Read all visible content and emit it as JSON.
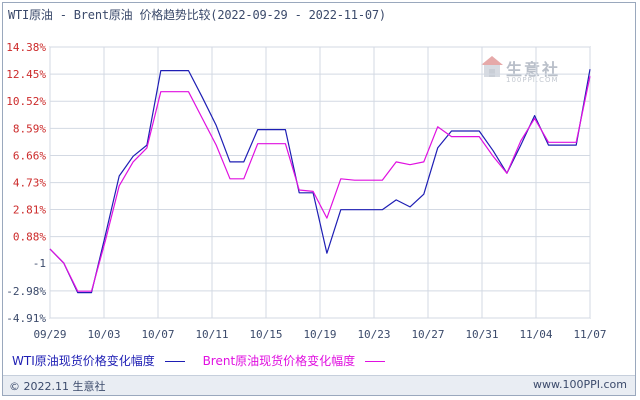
{
  "title": "WTI原油 - Brent原油 价格趋势比较(2022-09-29 - 2022-11-07)",
  "watermark": {
    "name": "生意社",
    "url": "100PPI.COM"
  },
  "footer": {
    "copyright": "© 2022.11 生意社",
    "site": "www.100PPI.com"
  },
  "chart_data": {
    "type": "line",
    "ylabels": [
      "14.38%",
      "12.45%",
      "10.52%",
      "8.59%",
      "6.66%",
      "4.73%",
      "2.81%",
      "0.88%",
      "-1",
      "-2.98%",
      "-4.91%"
    ],
    "yticks": [
      14.38,
      12.45,
      10.52,
      8.59,
      6.66,
      4.73,
      2.81,
      0.88,
      -1,
      -2.98,
      -4.91
    ],
    "ylim": [
      -4.91,
      14.38
    ],
    "xlabels": [
      "09/29",
      "10/03",
      "10/07",
      "10/11",
      "10/15",
      "10/19",
      "10/23",
      "10/27",
      "10/31",
      "11/04",
      "11/07"
    ],
    "x": [
      0,
      1,
      2,
      3,
      4,
      5,
      6,
      7,
      8,
      9,
      10,
      11,
      12,
      13,
      14,
      15,
      16,
      17,
      18,
      19,
      20,
      21,
      22,
      23,
      24,
      25,
      26,
      27,
      28,
      29,
      30,
      31,
      32,
      33,
      34,
      35,
      36,
      37,
      38,
      39
    ],
    "xlim": [
      0,
      39
    ],
    "grid": true,
    "legend_position": "bottom",
    "series": [
      {
        "name": "WTI原油现货价格变化幅度",
        "color": "#1e1eb4",
        "values": [
          [
            0,
            0
          ],
          [
            1,
            -1
          ],
          [
            2,
            -3.1
          ],
          [
            3,
            -3.1
          ],
          [
            4,
            1.0
          ],
          [
            5,
            5.2
          ],
          [
            6,
            6.6
          ],
          [
            7,
            7.4
          ],
          [
            8,
            12.7
          ],
          [
            9,
            12.7
          ],
          [
            10,
            12.7
          ],
          [
            11,
            10.8
          ],
          [
            12,
            8.8
          ],
          [
            13,
            6.2
          ],
          [
            14,
            6.2
          ],
          [
            15,
            8.5
          ],
          [
            16,
            8.5
          ],
          [
            17,
            8.5
          ],
          [
            18,
            4.0
          ],
          [
            19,
            4.0
          ],
          [
            20,
            -0.3
          ],
          [
            21,
            2.8
          ],
          [
            22,
            2.8
          ],
          [
            23,
            2.8
          ],
          [
            24,
            2.8
          ],
          [
            25,
            3.5
          ],
          [
            26,
            3.0
          ],
          [
            27,
            3.9
          ],
          [
            28,
            7.2
          ],
          [
            29,
            8.4
          ],
          [
            30,
            8.4
          ],
          [
            31,
            8.4
          ],
          [
            32,
            7.0
          ],
          [
            33,
            5.4
          ],
          [
            34,
            7.4
          ],
          [
            35,
            9.5
          ],
          [
            36,
            7.4
          ],
          [
            37,
            7.4
          ],
          [
            38,
            7.4
          ],
          [
            39,
            12.8
          ]
        ]
      },
      {
        "name": "Brent原油现货价格变化幅度",
        "color": "#e010e0",
        "values": [
          [
            0,
            0
          ],
          [
            1,
            -1
          ],
          [
            2,
            -3.0
          ],
          [
            3,
            -3.0
          ],
          [
            4,
            0.6
          ],
          [
            5,
            4.5
          ],
          [
            6,
            6.2
          ],
          [
            7,
            7.2
          ],
          [
            8,
            11.2
          ],
          [
            9,
            11.2
          ],
          [
            10,
            11.2
          ],
          [
            11,
            9.3
          ],
          [
            12,
            7.4
          ],
          [
            13,
            5.0
          ],
          [
            14,
            5.0
          ],
          [
            15,
            7.5
          ],
          [
            16,
            7.5
          ],
          [
            17,
            7.5
          ],
          [
            18,
            4.2
          ],
          [
            19,
            4.1
          ],
          [
            20,
            2.2
          ],
          [
            21,
            5.0
          ],
          [
            22,
            4.9
          ],
          [
            23,
            4.9
          ],
          [
            24,
            4.9
          ],
          [
            25,
            6.2
          ],
          [
            26,
            6.0
          ],
          [
            27,
            6.2
          ],
          [
            28,
            8.7
          ],
          [
            29,
            8.0
          ],
          [
            30,
            8.0
          ],
          [
            31,
            8.0
          ],
          [
            32,
            6.6
          ],
          [
            33,
            5.4
          ],
          [
            34,
            7.7
          ],
          [
            35,
            9.3
          ],
          [
            36,
            7.6
          ],
          [
            37,
            7.6
          ],
          [
            38,
            7.6
          ],
          [
            39,
            12.3
          ]
        ]
      }
    ]
  }
}
